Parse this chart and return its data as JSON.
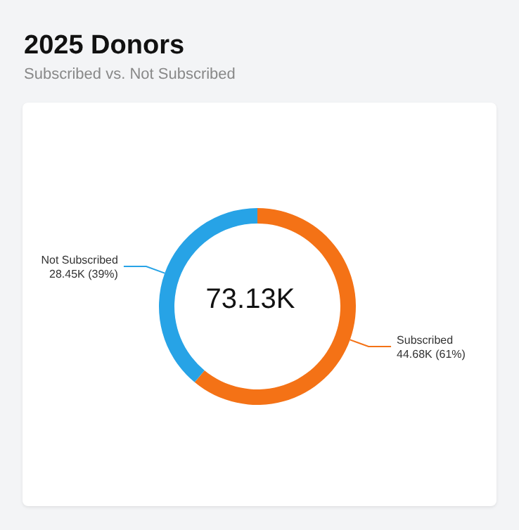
{
  "chart_data": {
    "type": "donut",
    "title": "2025 Donors",
    "subtitle": "Subscribed vs. Not Subscribed",
    "categories": [
      "Subscribed",
      "Not Subscribed"
    ],
    "values": [
      61,
      39
    ],
    "value_labels": [
      "44.68K (61%)",
      "28.45K (39%)"
    ],
    "colors": [
      "#f47216",
      "#27a3e6"
    ],
    "annotations": [
      "73.13K"
    ],
    "legend": false
  }
}
